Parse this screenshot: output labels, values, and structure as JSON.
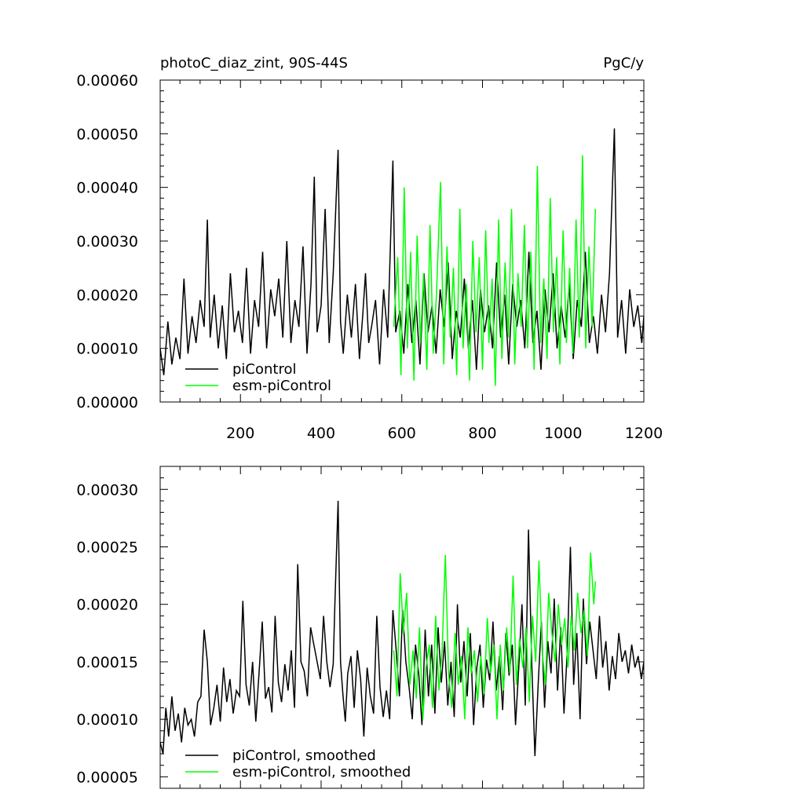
{
  "page": {
    "title_left": "photoC_diaz_zint, 90S-44S",
    "title_right": "PgC/y"
  },
  "colors": {
    "piControl": "#000000",
    "esm_piControl": "#00ff00"
  },
  "chart_data": [
    {
      "type": "line",
      "title": "photoC_diaz_zint, 90S-44S",
      "units": "PgC/y",
      "xlim": [
        1,
        1200
      ],
      "ylim": [
        0.0,
        0.0006
      ],
      "xticks": [
        200,
        400,
        600,
        800,
        1000,
        1200
      ],
      "yticks": [
        "0.00000",
        "0.00010",
        "0.00020",
        "0.00030",
        "0.00040",
        "0.00050",
        "0.00060"
      ],
      "legend": [
        "piControl",
        "esm-piControl"
      ],
      "legend_position": "bottom-left",
      "series": [
        {
          "name": "piControl",
          "color": "#000000",
          "x": [
            1,
            10,
            20,
            30,
            40,
            50,
            60,
            70,
            80,
            90,
            100,
            110,
            118,
            125,
            135,
            145,
            155,
            165,
            175,
            185,
            195,
            205,
            215,
            225,
            235,
            245,
            255,
            265,
            275,
            285,
            295,
            305,
            315,
            325,
            335,
            345,
            355,
            365,
            375,
            383,
            390,
            400,
            410,
            420,
            430,
            442,
            448,
            455,
            465,
            475,
            485,
            495,
            503,
            510,
            518,
            525,
            535,
            545,
            555,
            565,
            578,
            585,
            595,
            605,
            615,
            625,
            635,
            645,
            655,
            665,
            675,
            685,
            695,
            705,
            715,
            725,
            735,
            745,
            755,
            765,
            775,
            785,
            795,
            805,
            815,
            825,
            835,
            845,
            855,
            865,
            875,
            885,
            895,
            905,
            915,
            925,
            935,
            945,
            955,
            965,
            975,
            985,
            995,
            1005,
            1015,
            1025,
            1035,
            1045,
            1055,
            1065,
            1075,
            1085,
            1095,
            1105,
            1115,
            1127,
            1135,
            1145,
            1155,
            1165,
            1175,
            1185,
            1195,
            1200
          ],
          "y": [
            0.0001,
            5e-05,
            0.00015,
            7e-05,
            0.00012,
            8e-05,
            0.00023,
            9e-05,
            0.00016,
            0.00011,
            0.00019,
            0.00014,
            0.00034,
            0.00012,
            0.0002,
            0.0001,
            0.00018,
            8e-05,
            0.00024,
            0.00013,
            0.00017,
            0.00011,
            0.00025,
            9e-05,
            0.00019,
            0.00014,
            0.00028,
            0.0001,
            0.00021,
            0.00016,
            0.00023,
            0.00012,
            0.0003,
            0.00011,
            0.00019,
            0.00014,
            0.00029,
            9e-05,
            0.00022,
            0.00042,
            0.00013,
            0.00018,
            0.00036,
            0.00011,
            0.00024,
            0.00047,
            0.00015,
            9e-05,
            0.0002,
            0.00012,
            0.00022,
            8e-05,
            0.00016,
            0.00024,
            0.00011,
            0.00014,
            0.00019,
            7e-05,
            0.00021,
            0.00012,
            0.00045,
            0.00013,
            0.00017,
            9e-05,
            0.00022,
            0.00011,
            0.00019,
            7e-05,
            0.00024,
            0.00013,
            0.00018,
            9e-05,
            0.00021,
            0.00014,
            0.00026,
            8e-05,
            0.00017,
            0.00012,
            0.00023,
            0.0001,
            0.00019,
            6e-05,
            0.00021,
            0.00013,
            0.00018,
            0.0001,
            0.00026,
            0.00012,
            0.0002,
            7e-05,
            0.00022,
            0.00014,
            0.00019,
            0.0001,
            0.00028,
            0.00011,
            0.00017,
            6e-05,
            0.00021,
            0.00013,
            0.00024,
            0.0001,
            0.00018,
            0.00012,
            0.00022,
            8e-05,
            0.00019,
            0.00014,
            0.00028,
            0.00011,
            0.00016,
            9e-05,
            0.0002,
            0.00013,
            0.00024,
            0.00051,
            0.00012,
            0.00019,
            9e-05,
            0.00021,
            0.00014,
            0.00018,
            0.00011,
            0.00016
          ]
        },
        {
          "name": "esm-piControl",
          "color": "#00ff00",
          "x": [
            580,
            590,
            598,
            606,
            614,
            622,
            630,
            638,
            646,
            654,
            662,
            670,
            678,
            686,
            696,
            704,
            712,
            720,
            728,
            736,
            744,
            752,
            760,
            768,
            776,
            784,
            792,
            800,
            808,
            816,
            824,
            832,
            840,
            848,
            856,
            864,
            872,
            880,
            888,
            896,
            904,
            912,
            920,
            928,
            936,
            944,
            952,
            960,
            968,
            976,
            984,
            992,
            1000,
            1008,
            1016,
            1024,
            1032,
            1040,
            1048,
            1056,
            1064,
            1072,
            1080
          ],
          "y": [
            0.00014,
            0.00027,
            5e-05,
            0.0004,
            0.0001,
            0.00028,
            4e-05,
            0.00031,
            0.00011,
            0.00024,
            6e-05,
            0.00033,
            9e-05,
            0.0002,
            0.00041,
            7e-05,
            0.00029,
            0.00012,
            0.00025,
            5e-05,
            0.00036,
            0.0001,
            0.00022,
            4e-05,
            0.0003,
            0.00013,
            0.00027,
            6e-05,
            0.00032,
            0.00011,
            0.00023,
            3e-05,
            0.00034,
            8e-05,
            0.00026,
            0.00012,
            0.00036,
            7e-05,
            0.00024,
            0.00014,
            0.00033,
            0.0001,
            0.00028,
            6e-05,
            0.00044,
            0.00011,
            0.00023,
            8e-05,
            0.00038,
            0.00013,
            0.00027,
            7e-05,
            0.00032,
            0.00011,
            0.00025,
            9e-05,
            0.00034,
            0.00012,
            0.00046,
            0.0001,
            0.00029,
            0.00014,
            0.00036
          ]
        }
      ]
    },
    {
      "type": "line",
      "xlim": [
        1,
        1200
      ],
      "ylim": [
        4e-05,
        0.00032
      ],
      "yticks": [
        "0.00005",
        "0.00010",
        "0.00015",
        "0.00020",
        "0.00025",
        "0.00030"
      ],
      "legend": [
        "piControl, smoothed",
        "esm-piControl, smoothed"
      ],
      "legend_position": "bottom-left",
      "series": [
        {
          "name": "piControl, smoothed",
          "color": "#000000",
          "x": [
            1,
            8,
            15,
            22,
            30,
            38,
            46,
            54,
            62,
            70,
            78,
            86,
            94,
            102,
            110,
            118,
            126,
            134,
            142,
            150,
            158,
            166,
            174,
            182,
            190,
            198,
            206,
            214,
            222,
            230,
            238,
            246,
            254,
            262,
            270,
            278,
            286,
            294,
            302,
            310,
            318,
            326,
            334,
            342,
            350,
            358,
            366,
            374,
            382,
            390,
            398,
            406,
            414,
            422,
            430,
            434,
            442,
            448,
            454,
            460,
            466,
            474,
            482,
            490,
            498,
            506,
            514,
            522,
            530,
            538,
            546,
            554,
            562,
            570,
            578,
            586,
            594,
            602,
            610,
            618,
            626,
            634,
            642,
            650,
            658,
            666,
            674,
            682,
            690,
            698,
            706,
            714,
            722,
            730,
            738,
            746,
            754,
            762,
            770,
            778,
            786,
            794,
            802,
            810,
            818,
            826,
            834,
            842,
            850,
            858,
            866,
            874,
            882,
            890,
            898,
            906,
            914,
            922,
            930,
            938,
            946,
            954,
            962,
            970,
            978,
            986,
            994,
            1002,
            1010,
            1018,
            1026,
            1034,
            1042,
            1050,
            1058,
            1066,
            1074,
            1082,
            1090,
            1098,
            1106,
            1114,
            1122,
            1130,
            1138,
            1146,
            1154,
            1162,
            1170,
            1178,
            1186,
            1194,
            1200
          ],
          "y": [
            8e-05,
            7e-05,
            0.00011,
            8.5e-05,
            0.00012,
            9e-05,
            0.000105,
            8e-05,
            0.00011,
            9.5e-05,
            0.0001,
            8.5e-05,
            0.000115,
            0.00012,
            0.000178,
            0.00015,
            9.5e-05,
            0.00011,
            0.00013,
            9.8e-05,
            0.000145,
            0.000115,
            0.000135,
            0.000105,
            0.000125,
            0.00012,
            0.000203,
            0.00013,
            0.000112,
            0.00015,
            9.8e-05,
            0.00014,
            0.000185,
            0.000118,
            0.000128,
            0.000106,
            0.00019,
            0.000132,
            0.000115,
            0.000148,
            0.000125,
            0.00016,
            0.00011,
            0.000235,
            0.00015,
            0.000142,
            0.00012,
            0.00018,
            0.000165,
            0.00015,
            0.000135,
            0.00019,
            0.00015,
            0.000128,
            0.000148,
            0.0002,
            0.00029,
            0.00015,
            0.000122,
            9.8e-05,
            0.00014,
            0.000155,
            0.00011,
            0.00016,
            0.000135,
            8.5e-05,
            0.000145,
            0.00012,
            0.000105,
            0.00019,
            0.000128,
            0.000102,
            0.000125,
            0.0001,
            0.000195,
            0.00016,
            0.00012,
            0.000195,
            0.00015,
            0.000128,
            0.0001,
            0.000165,
            0.00014,
            9.5e-05,
            0.000178,
            0.00012,
            0.000165,
            0.000105,
            0.00018,
            0.000132,
            0.000168,
            0.000112,
            0.00015,
            0.000102,
            0.0002,
            0.000132,
            0.000168,
            0.00012,
            0.000175,
            9.5e-05,
            0.000145,
            0.000165,
            0.00011,
            0.000152,
            0.000134,
            0.000185,
            0.000125,
            0.000155,
            0.000108,
            0.000175,
            0.000138,
            0.000165,
            9.5e-05,
            0.000145,
            0.0002,
            0.000112,
            0.000265,
            0.00015,
            6.8e-05,
            0.00013,
            0.000185,
            0.00011,
            0.000168,
            0.00014,
            0.000205,
            0.000125,
            0.00018,
            0.000105,
            0.000158,
            0.00025,
            0.00013,
            0.000175,
            0.0001,
            0.000205,
            0.000148,
            0.000185,
            0.00016,
            0.000135,
            0.00019,
            0.000145,
            0.000168,
            0.000125,
            0.000155,
            0.000135,
            0.000175,
            0.00015,
            0.00016,
            0.00014,
            0.000165,
            0.000145,
            0.000155,
            0.000135,
            0.00015
          ]
        },
        {
          "name": "esm-piControl, smoothed",
          "color": "#00ff00",
          "x": [
            580,
            588,
            596,
            604,
            612,
            620,
            628,
            636,
            644,
            652,
            660,
            668,
            676,
            684,
            692,
            700,
            708,
            716,
            724,
            732,
            740,
            748,
            756,
            764,
            772,
            780,
            788,
            796,
            804,
            812,
            820,
            828,
            836,
            844,
            852,
            860,
            868,
            876,
            884,
            892,
            900,
            908,
            916,
            924,
            932,
            940,
            948,
            956,
            964,
            972,
            980,
            988,
            996,
            1004,
            1012,
            1020,
            1028,
            1036,
            1044,
            1052,
            1060,
            1068,
            1076,
            1080
          ],
          "y": [
            0.00016,
            0.00012,
            0.000227,
            0.000175,
            0.00021,
            0.00013,
            0.00016,
            0.000118,
            0.00018,
            0.0001,
            0.000145,
            0.000165,
            0.00011,
            0.00019,
            0.000125,
            0.00016,
            0.000243,
            0.00014,
            0.00011,
            0.000175,
            0.00013,
            0.000155,
            0.0001,
            0.00018,
            0.00014,
            0.00016,
            0.000115,
            0.000155,
            0.000122,
            0.000188,
            0.00014,
            0.000165,
            0.0001,
            0.000165,
            0.000125,
            0.00018,
            0.00014,
            0.000225,
            0.00013,
            0.00017,
            0.000145,
            0.00018,
            0.000115,
            0.00019,
            0.00015,
            0.000238,
            0.00016,
            0.00013,
            0.00021,
            0.000175,
            0.00015,
            0.0002,
            0.000165,
            0.000188,
            0.000145,
            0.00019,
            0.00016,
            0.00021,
            0.000175,
            0.000195,
            0.000155,
            0.000245,
            0.0002,
            0.00022
          ]
        }
      ]
    }
  ]
}
